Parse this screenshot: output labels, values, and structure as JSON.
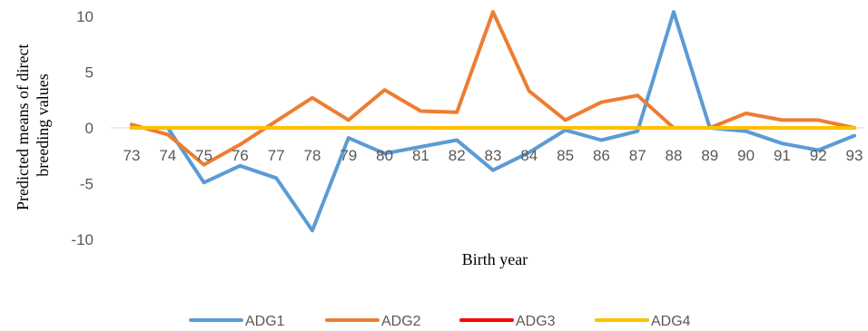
{
  "chart_data": {
    "type": "line",
    "title": "",
    "xlabel": "Birth year",
    "ylabel_lines": [
      "Predicted means of direct",
      "breeding values"
    ],
    "categories": [
      "73",
      "74",
      "75",
      "76",
      "77",
      "78",
      "79",
      "80",
      "81",
      "82",
      "83",
      "84",
      "85",
      "86",
      "87",
      "88",
      "89",
      "90",
      "91",
      "92",
      "93"
    ],
    "ylim": [
      -10,
      10
    ],
    "yticks": [
      10,
      5,
      0,
      -5,
      -10
    ],
    "grid": false,
    "legend": "bottom",
    "series": [
      {
        "name": "ADG1",
        "color": "#5B9BD5",
        "values": [
          0,
          0,
          -4.9,
          -3.4,
          -4.5,
          -9.2,
          -0.9,
          -2.3,
          -1.7,
          -1.1,
          -3.8,
          -2.2,
          -0.2,
          -1.1,
          -0.3,
          10.4,
          0,
          -0.3,
          -1.4,
          -2.0,
          -0.7
        ]
      },
      {
        "name": "ADG2",
        "color": "#ED7D31",
        "values": [
          0.3,
          -0.6,
          -3.3,
          -1.5,
          0.6,
          2.7,
          0.7,
          3.4,
          1.5,
          1.4,
          10.4,
          3.3,
          0.7,
          2.3,
          2.9,
          0,
          0,
          1.3,
          0.7,
          0.7,
          0
        ]
      },
      {
        "name": "ADG3",
        "color": "#FF0000",
        "values": [
          0,
          0,
          0,
          0,
          0,
          0,
          0,
          0,
          0,
          0,
          0,
          0,
          0,
          0,
          0,
          0,
          0,
          0,
          0,
          0,
          0
        ]
      },
      {
        "name": "ADG4",
        "color": "#FFC000",
        "values": [
          0,
          0,
          0,
          0,
          0,
          0,
          0,
          0,
          0,
          0,
          0,
          0,
          0,
          0,
          0,
          0,
          0,
          0,
          0,
          0,
          0
        ]
      }
    ]
  }
}
